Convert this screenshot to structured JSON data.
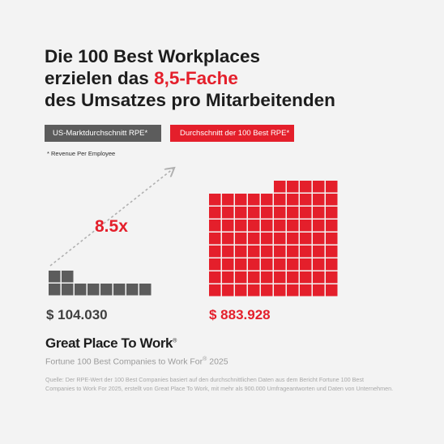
{
  "headline": {
    "line1": "Die 100 Best Workplaces",
    "line2_prefix": "erzielen das ",
    "line2_highlight": "8,5-Fache",
    "line3": "des Umsatzes pro Mitarbeitenden"
  },
  "legend": {
    "us_label": "US-Marktdurchschnitt RPE*",
    "best_label": "Durchschnitt der 100 Best RPE*"
  },
  "footnote": "* Revenue Per Employee",
  "chart_data": {
    "type": "bar",
    "categories": [
      "US-Marktdurchschnitt RPE*",
      "Durchschnitt der 100 Best RPE*"
    ],
    "values": [
      104030,
      883928
    ],
    "value_labels": [
      "$ 104.030",
      "$ 883.928"
    ],
    "units": {
      "us": 10,
      "best": 85
    },
    "multiplier_label": "8.5x",
    "colors": {
      "us": "#5c5c5c",
      "best": "#e41f2b"
    }
  },
  "brand": {
    "name": "Great Place To Work",
    "tm": "®"
  },
  "subtitle": {
    "text": "Fortune 100 Best Companies to Work For",
    "reg": "®",
    "year": " 2025"
  },
  "source": "Quelle: Der RPE-Wert der 100 Best Companies basiert auf den durchschnittlichen Daten aus dem Bericht Fortune 100 Best Companies to Work For 2025, erstellt von Great Place To Work, mit mehr als 900.000 Umfrageantworten und Daten von Unternehmen."
}
